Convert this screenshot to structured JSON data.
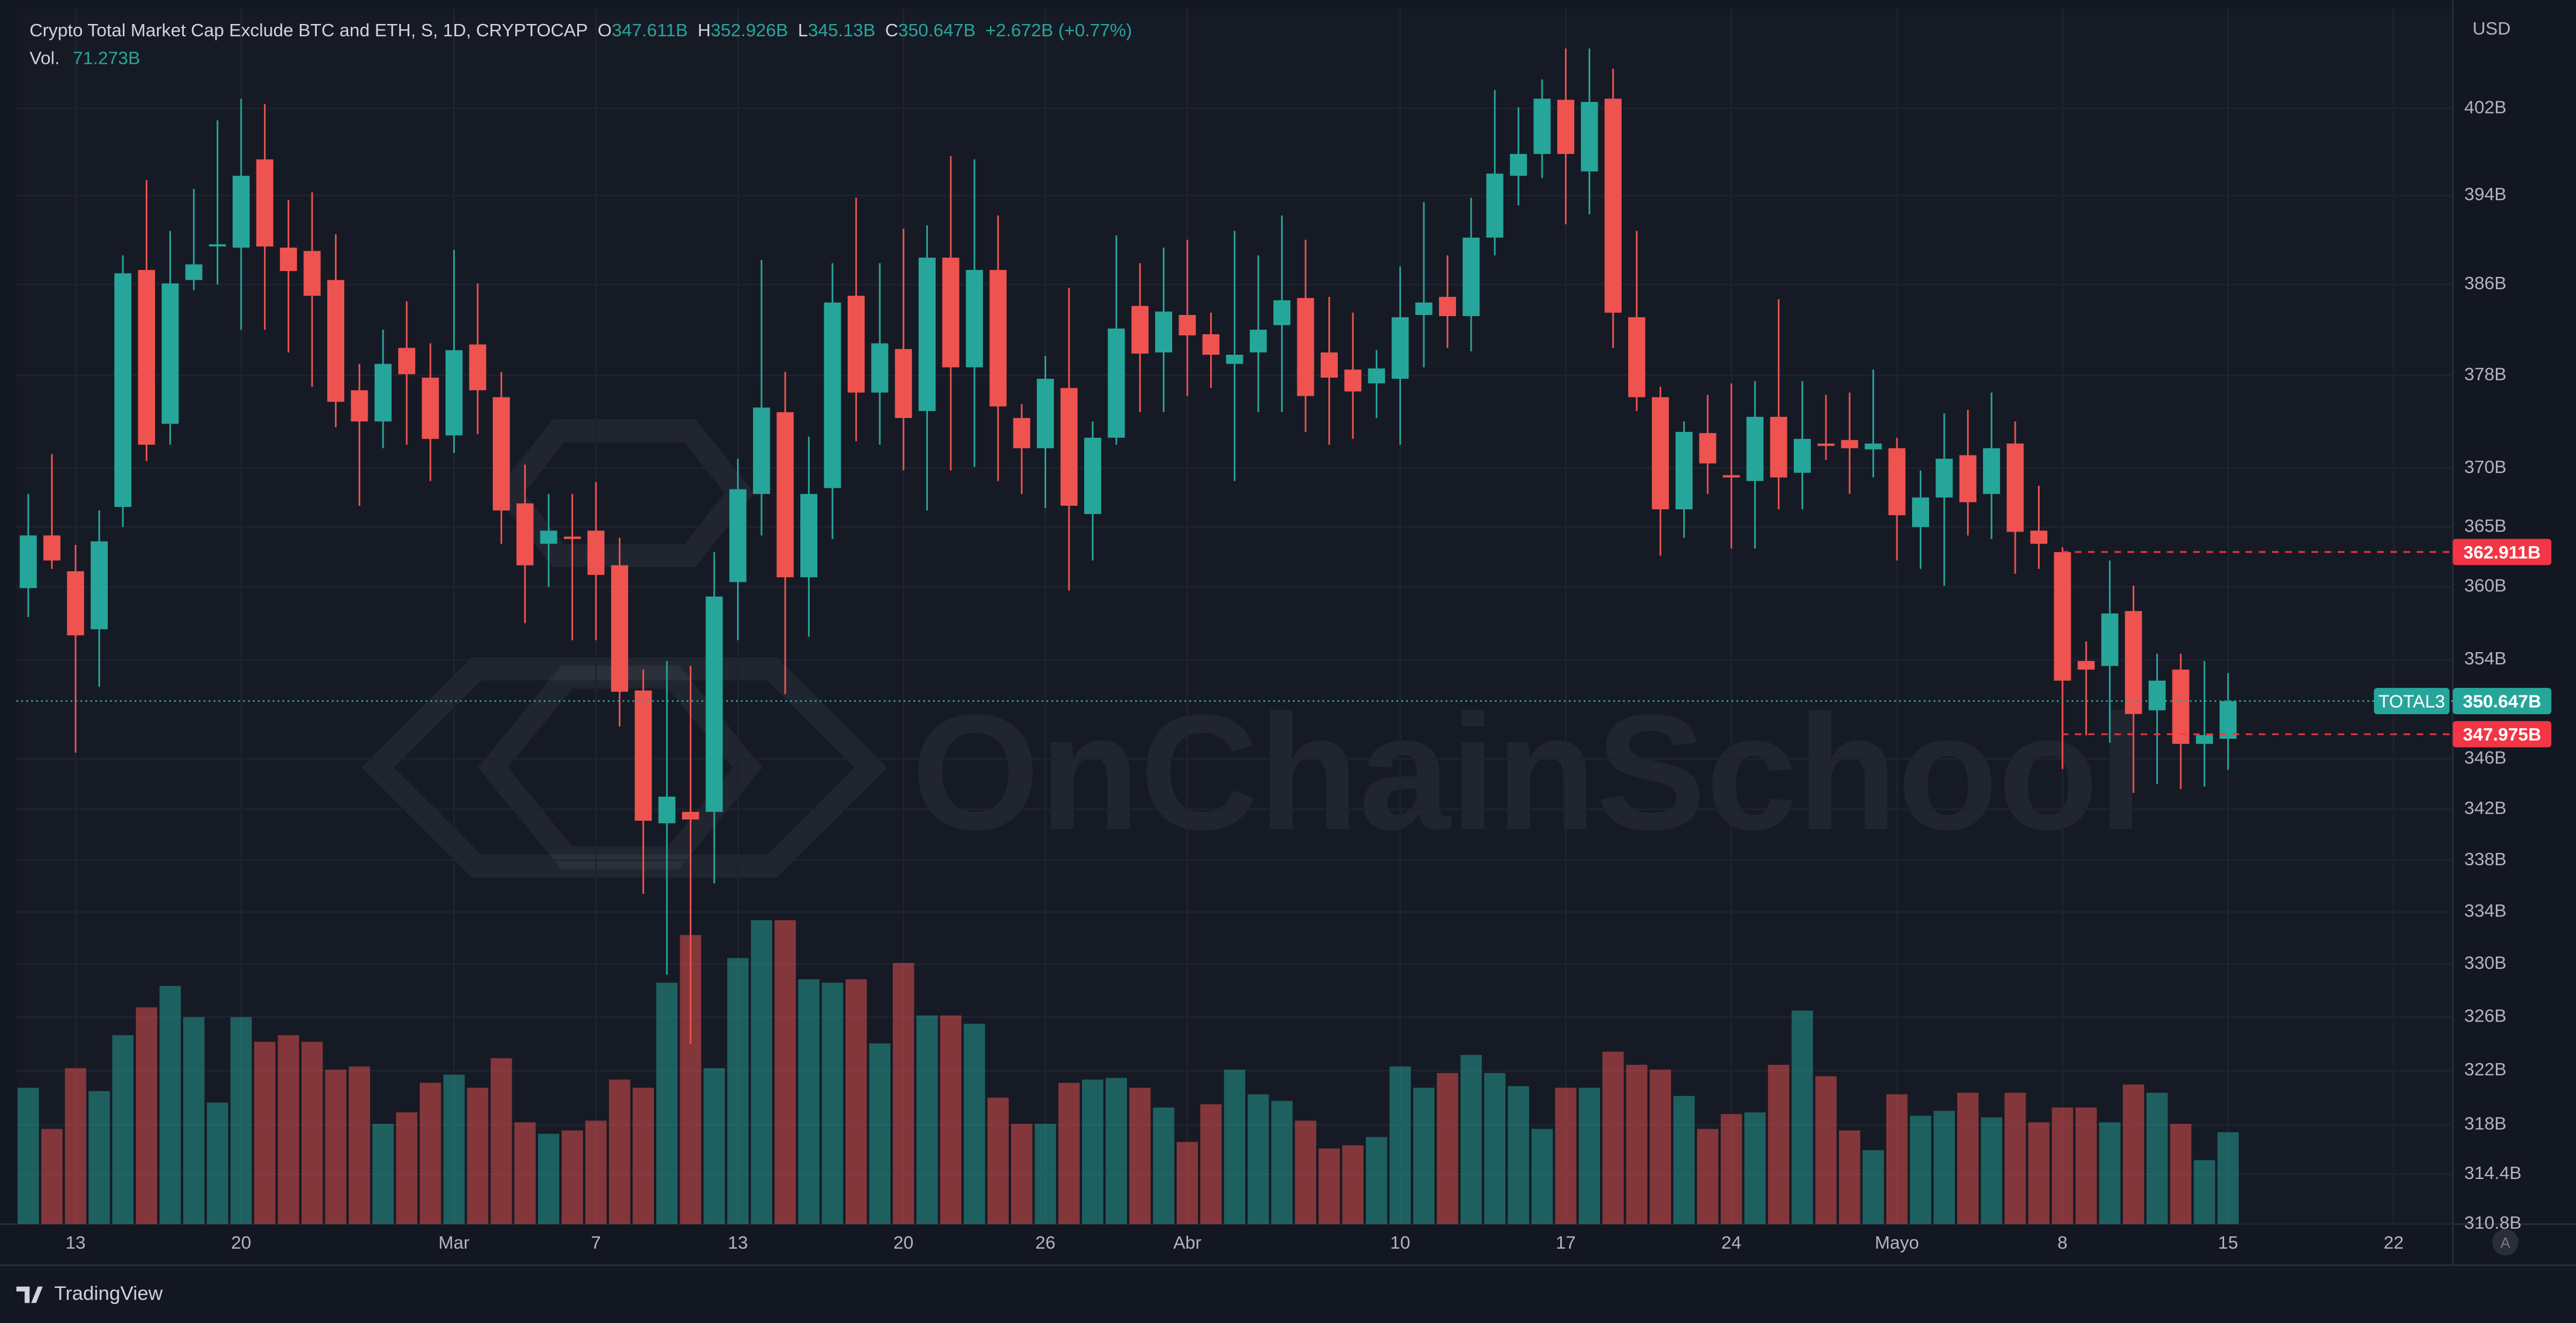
{
  "chart_data": {
    "type": "candlestick",
    "title": "Crypto Total Market Cap Exclude BTC and ETH, S, 1D, CRYPTOCAP",
    "ohlc": [
      {
        "key": "O",
        "text": "347.611B"
      },
      {
        "key": "H",
        "text": "352.926B"
      },
      {
        "key": "L",
        "text": "345.13B"
      },
      {
        "key": "C",
        "text": "350.647B"
      }
    ],
    "change": "+2.672B (+0.77%)",
    "volume_label": {
      "key": "Vol.",
      "text": "71.273B"
    },
    "currency": "USD",
    "watermark": "OnChainSchool",
    "footer": "TradingView",
    "scale_button": "A",
    "up_color": "#26a69a",
    "down_color": "#ef5350",
    "log_scale": true,
    "grid": true,
    "x": [
      "02-11",
      "02-12",
      "02-13",
      "02-14",
      "02-15",
      "02-16",
      "02-17",
      "02-18",
      "02-19",
      "02-20",
      "02-21",
      "02-22",
      "02-23",
      "02-24",
      "02-25",
      "02-26",
      "02-27",
      "02-28",
      "03-01",
      "03-02",
      "03-03",
      "03-04",
      "03-05",
      "03-06",
      "03-07",
      "03-08",
      "03-09",
      "03-10",
      "03-11",
      "03-12",
      "03-13",
      "03-14",
      "03-15",
      "03-16",
      "03-17",
      "03-18",
      "03-19",
      "03-20",
      "03-21",
      "03-22",
      "03-23",
      "03-24",
      "03-25",
      "03-26",
      "03-27",
      "03-28",
      "03-29",
      "03-30",
      "03-31",
      "04-01",
      "04-02",
      "04-03",
      "04-04",
      "04-05",
      "04-06",
      "04-07",
      "04-08",
      "04-09",
      "04-10",
      "04-11",
      "04-12",
      "04-13",
      "04-14",
      "04-15",
      "04-16",
      "04-17",
      "04-18",
      "04-19",
      "04-20",
      "04-21",
      "04-22",
      "04-23",
      "04-24",
      "04-25",
      "04-26",
      "04-27",
      "04-28",
      "04-29",
      "04-30",
      "05-01",
      "05-02",
      "05-03",
      "05-04",
      "05-05",
      "05-06",
      "05-07",
      "05-08",
      "05-09",
      "05-10",
      "05-11",
      "05-12",
      "05-13",
      "05-14",
      "05-15"
    ],
    "open": [
      359.9,
      364.3,
      361.3,
      356.5,
      366.7,
      387.3,
      373.8,
      386.4,
      389.4,
      389.3,
      397.3,
      389.3,
      389.0,
      386.4,
      376.7,
      374.0,
      380.4,
      377.8,
      372.8,
      380.7,
      376.1,
      367.0,
      363.6,
      364.2,
      364.7,
      361.8,
      351.5,
      340.9,
      341.8,
      341.8,
      360.4,
      367.8,
      374.8,
      360.8,
      368.3,
      385.0,
      376.5,
      380.3,
      374.9,
      388.4,
      378.7,
      387.3,
      374.3,
      371.7,
      376.9,
      366.1,
      372.6,
      384.1,
      380.0,
      383.3,
      381.6,
      379.0,
      380.0,
      382.4,
      384.8,
      380.0,
      378.5,
      377.3,
      377.7,
      383.3,
      384.9,
      383.2,
      390.2,
      395.8,
      397.8,
      402.8,
      396.2,
      402.9,
      383.1,
      376.1,
      366.5,
      373.0,
      369.4,
      368.9,
      374.4,
      369.6,
      372.1,
      372.4,
      371.6,
      371.7,
      365.0,
      367.5,
      371.1,
      367.8,
      372.1,
      364.7,
      362.9,
      353.9,
      353.5,
      358.0,
      349.9,
      353.2,
      347.2,
      347.611
    ],
    "high": [
      367.8,
      371.2,
      363.5,
      366.4,
      388.6,
      395.4,
      390.8,
      394.6,
      400.9,
      402.9,
      402.4,
      393.6,
      394.3,
      390.5,
      379.0,
      382.0,
      384.5,
      380.8,
      389.1,
      386.1,
      378.3,
      370.3,
      367.8,
      367.8,
      368.8,
      364.1,
      353.2,
      353.9,
      353.5,
      362.9,
      370.8,
      388.2,
      378.3,
      372.7,
      387.9,
      393.8,
      387.9,
      391.0,
      391.3,
      397.6,
      397.3,
      392.2,
      375.5,
      379.7,
      385.7,
      374.0,
      390.4,
      387.9,
      389.3,
      390.0,
      383.5,
      390.8,
      388.6,
      392.2,
      390.0,
      384.9,
      383.5,
      380.2,
      387.6,
      393.4,
      388.6,
      393.8,
      403.7,
      402.1,
      404.7,
      407.6,
      407.6,
      405.7,
      390.8,
      377.0,
      374.0,
      376.3,
      377.3,
      377.5,
      384.7,
      377.5,
      376.3,
      376.5,
      378.5,
      372.6,
      369.8,
      374.7,
      375.0,
      376.5,
      374.0,
      368.5,
      363.3,
      355.5,
      362.2,
      360.1,
      354.5,
      354.5,
      353.9,
      352.926
    ],
    "low": [
      357.5,
      361.5,
      346.5,
      351.8,
      365.0,
      370.6,
      372.0,
      385.5,
      386.0,
      382.0,
      382.0,
      380.0,
      377.0,
      373.5,
      366.8,
      371.7,
      372.0,
      368.9,
      371.3,
      372.9,
      363.6,
      357.0,
      360.0,
      355.6,
      355.6,
      348.6,
      335.4,
      329.2,
      324.0,
      336.2,
      355.6,
      364.3,
      351.2,
      355.9,
      364.0,
      372.3,
      372.0,
      369.8,
      366.4,
      369.8,
      370.1,
      368.9,
      367.8,
      366.6,
      359.7,
      362.2,
      372.0,
      374.8,
      374.8,
      376.2,
      376.9,
      368.9,
      374.8,
      374.8,
      373.1,
      372.0,
      372.5,
      374.3,
      372.0,
      378.7,
      380.4,
      380.1,
      388.6,
      393.1,
      395.6,
      391.4,
      392.3,
      380.4,
      374.9,
      362.6,
      364.1,
      367.8,
      363.2,
      363.2,
      366.5,
      366.5,
      370.7,
      367.8,
      369.2,
      362.2,
      361.5,
      360.1,
      364.3,
      364.0,
      361.1,
      361.5,
      345.2,
      347.9,
      347.3,
      343.3,
      344.0,
      343.6,
      343.8,
      345.13
    ],
    "close": [
      364.3,
      362.2,
      356.0,
      363.8,
      387.0,
      372.0,
      386.1,
      387.8,
      389.6,
      395.8,
      389.4,
      387.2,
      385.0,
      375.7,
      374.0,
      379.0,
      378.1,
      372.5,
      380.2,
      376.7,
      366.4,
      361.8,
      364.7,
      364.0,
      361.0,
      351.4,
      341.1,
      343.0,
      341.2,
      359.2,
      368.2,
      375.2,
      360.8,
      367.8,
      384.4,
      376.5,
      380.8,
      374.3,
      388.4,
      378.7,
      387.3,
      375.3,
      371.7,
      377.7,
      366.8,
      372.6,
      382.1,
      379.9,
      383.6,
      381.5,
      379.8,
      379.8,
      382.0,
      384.6,
      376.2,
      377.8,
      376.6,
      378.6,
      383.1,
      384.4,
      383.2,
      390.2,
      396.0,
      397.8,
      402.9,
      397.8,
      402.6,
      383.5,
      376.1,
      366.5,
      373.1,
      370.4,
      369.2,
      374.4,
      369.2,
      372.5,
      371.9,
      371.7,
      372.1,
      366.0,
      367.5,
      370.8,
      367.1,
      371.7,
      364.6,
      363.6,
      352.3,
      353.2,
      357.8,
      349.6,
      352.3,
      347.2,
      347.9,
      350.647
    ],
    "volume": [
      105.7,
      73.8,
      120.9,
      103.1,
      146.4,
      168.0,
      184.6,
      160.4,
      94.2,
      160.4,
      141.3,
      146.4,
      141.3,
      119.7,
      122.2,
      77.7,
      86.6,
      109.5,
      115.8,
      105.7,
      128.6,
      78.9,
      70.0,
      72.6,
      80.2,
      112.0,
      105.7,
      187.1,
      224.0,
      120.9,
      206.2,
      235.5,
      235.5,
      189.7,
      187.1,
      189.7,
      140.0,
      202.4,
      161.7,
      161.7,
      155.3,
      98.0,
      77.7,
      77.7,
      109.5,
      112.0,
      113.3,
      105.7,
      90.4,
      63.7,
      92.9,
      119.7,
      100.6,
      95.5,
      80.2,
      58.6,
      61.1,
      67.5,
      122.2,
      105.7,
      117.1,
      131.1,
      117.1,
      106.9,
      73.8,
      105.7,
      105.7,
      133.7,
      123.5,
      119.7,
      99.3,
      73.8,
      85.3,
      86.6,
      123.5,
      165.5,
      114.6,
      72.6,
      57.3,
      100.6,
      84.0,
      87.8,
      101.8,
      82.7,
      101.8,
      78.9,
      90.4,
      90.4,
      78.9,
      108.2,
      101.8,
      77.7,
      49.6,
      71.273
    ],
    "xlim": [
      "02-11",
      "05-24"
    ],
    "xticks": [
      {
        "value": "02-13",
        "label": "13"
      },
      {
        "value": "02-20",
        "label": "20"
      },
      {
        "value": "03-01",
        "label": "Mar"
      },
      {
        "value": "03-07",
        "label": "7"
      },
      {
        "value": "03-13",
        "label": "13"
      },
      {
        "value": "03-20",
        "label": "20"
      },
      {
        "value": "03-26",
        "label": "26"
      },
      {
        "value": "04-01",
        "label": "Abr"
      },
      {
        "value": "04-10",
        "label": "10"
      },
      {
        "value": "04-17",
        "label": "17"
      },
      {
        "value": "04-24",
        "label": "24"
      },
      {
        "value": "05-01",
        "label": "Mayo"
      },
      {
        "value": "05-08",
        "label": "8"
      },
      {
        "value": "05-15",
        "label": "15"
      },
      {
        "value": "05-22",
        "label": "22"
      }
    ],
    "ylim": [
      310.8,
      410.9
    ],
    "yticks": [
      {
        "value": 310.8,
        "label": "310.8B"
      },
      {
        "value": 314.4,
        "label": "314.4B"
      },
      {
        "value": 318,
        "label": "318B"
      },
      {
        "value": 322,
        "label": "322B"
      },
      {
        "value": 326,
        "label": "326B"
      },
      {
        "value": 330,
        "label": "330B"
      },
      {
        "value": 334,
        "label": "334B"
      },
      {
        "value": 338,
        "label": "338B"
      },
      {
        "value": 342,
        "label": "342B"
      },
      {
        "value": 346,
        "label": "346B"
      },
      {
        "value": 354,
        "label": "354B"
      },
      {
        "value": 360,
        "label": "360B"
      },
      {
        "value": 365,
        "label": "365B"
      },
      {
        "value": 370,
        "label": "370B"
      },
      {
        "value": 378,
        "label": "378B"
      },
      {
        "value": 386,
        "label": "386B"
      },
      {
        "value": 394,
        "label": "394B"
      },
      {
        "value": 402,
        "label": "402B"
      }
    ],
    "price_lines": [
      {
        "value": 362.911,
        "label": "362.911B",
        "color": "#f23645"
      },
      {
        "value": 347.975,
        "label": "347.975B",
        "color": "#f23645"
      }
    ],
    "last_price": {
      "name": "TOTAL3",
      "value": 350.647,
      "label": "350.647B",
      "color": "#26a69a"
    }
  }
}
